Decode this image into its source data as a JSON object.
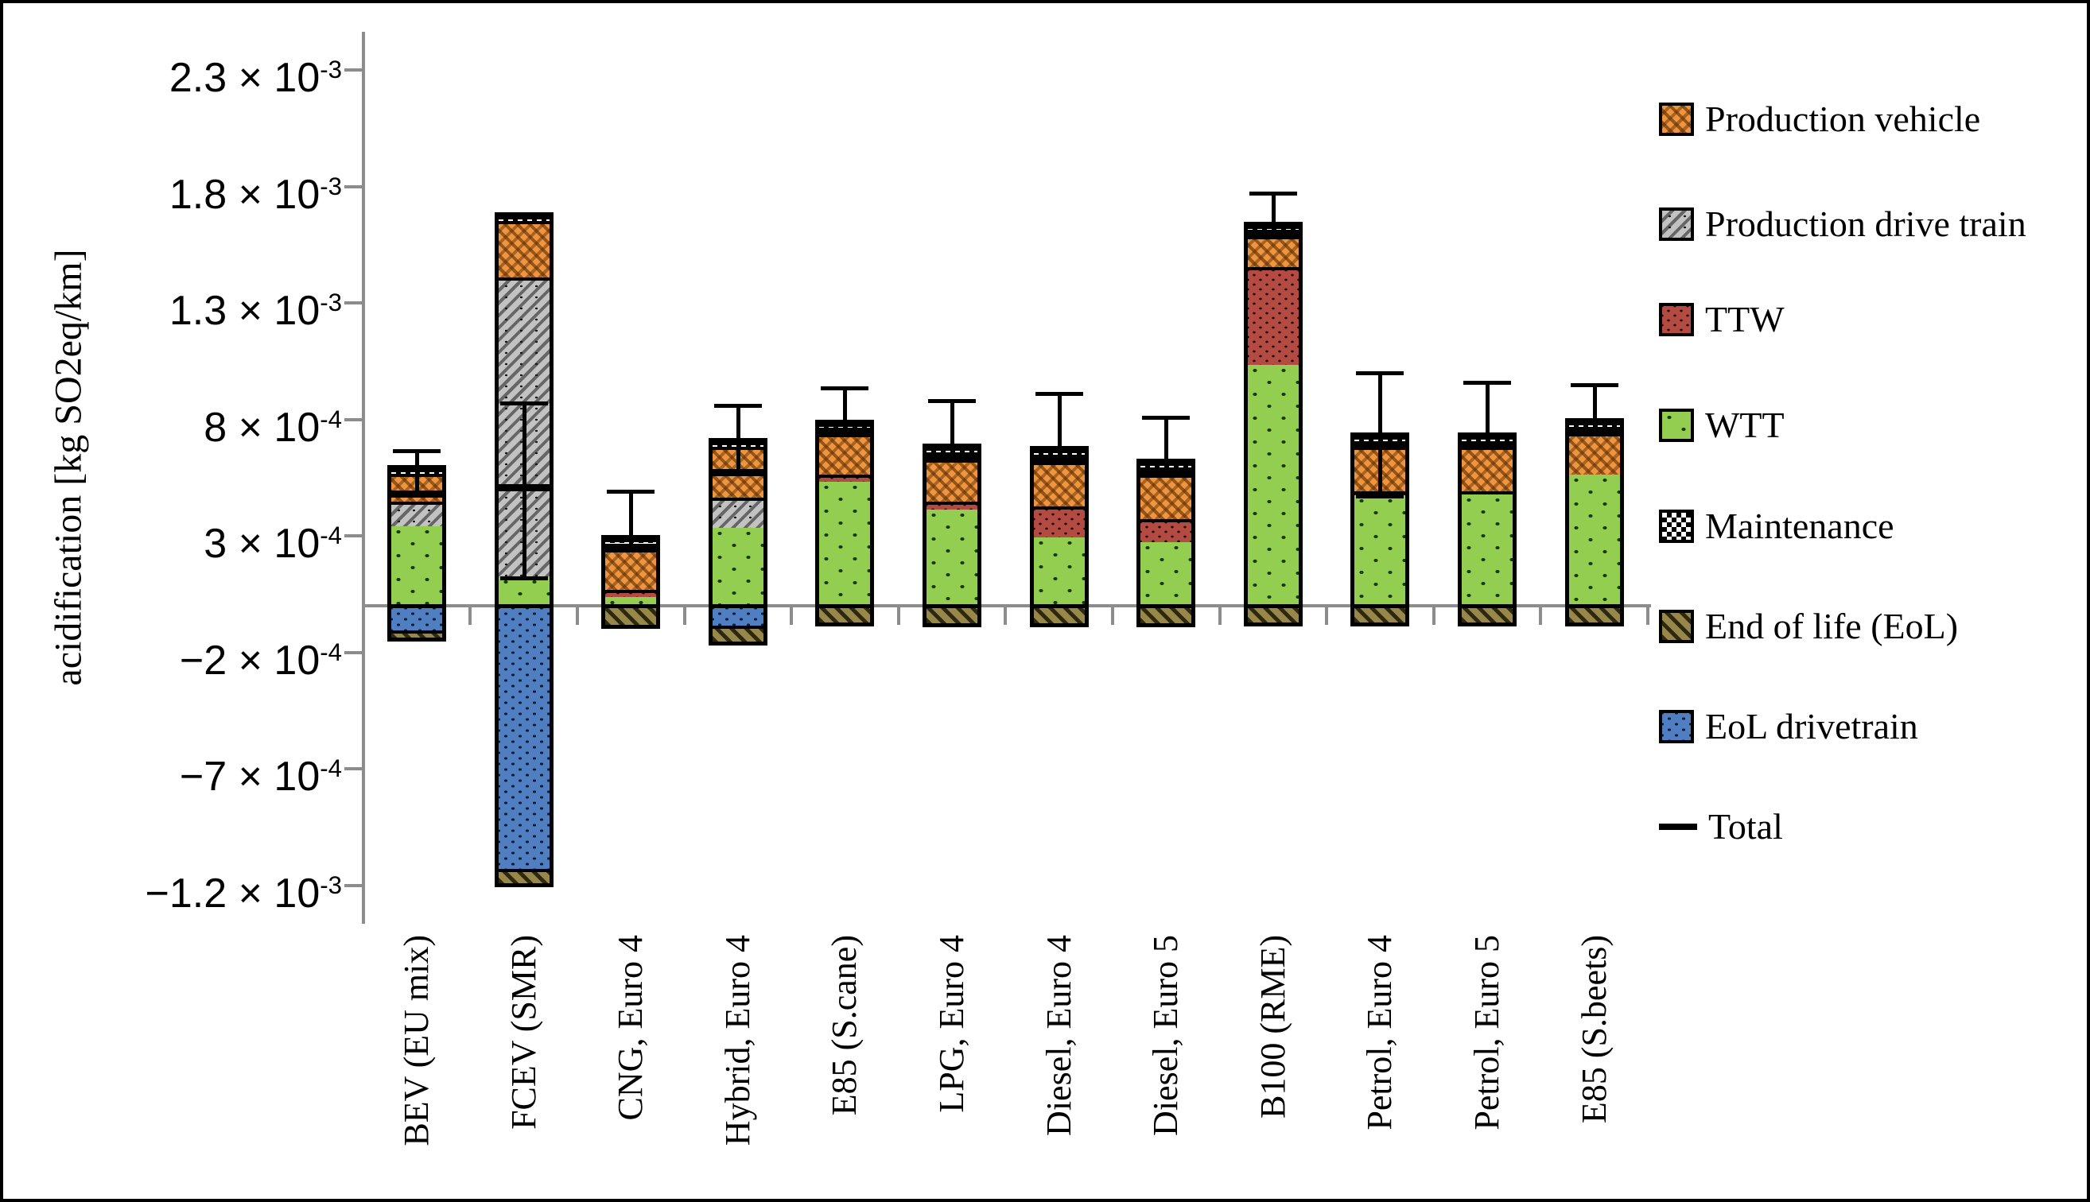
{
  "figure": {
    "y_axis_title": "acidification [kg SO2eq/km]"
  },
  "y_axis": {
    "ticks": [
      {
        "label_base": "2.3 × 10",
        "exp": "-3",
        "value": 0.0023
      },
      {
        "label_base": "1.8 × 10",
        "exp": "-3",
        "value": 0.0018
      },
      {
        "label_base": "1.3 × 10",
        "exp": "-3",
        "value": 0.0013
      },
      {
        "label_base": "8 × 10",
        "exp": "-4",
        "value": 0.0008
      },
      {
        "label_base": "3 × 10",
        "exp": "-4",
        "value": 0.0003
      },
      {
        "label_base": "−2 × 10",
        "exp": "-4",
        "value": -0.0002
      },
      {
        "label_base": "−7 × 10",
        "exp": "-4",
        "value": -0.0007
      },
      {
        "label_base": "−1.2 × 10",
        "exp": "-3",
        "value": -0.0012
      }
    ]
  },
  "legend": {
    "items": [
      {
        "label": "Production vehicle",
        "series": "production_vehicle"
      },
      {
        "label": "Production drive train",
        "series": "production_drive_train"
      },
      {
        "label": "TTW",
        "series": "ttw"
      },
      {
        "label": "WTT",
        "series": "wtt"
      },
      {
        "label": "Maintenance",
        "series": "maintenance"
      },
      {
        "label": "End of life (EoL)",
        "series": "end_of_life"
      },
      {
        "label": "EoL drivetrain",
        "series": "eol_drivetrain"
      },
      {
        "label": "Total",
        "series": "total"
      }
    ]
  },
  "chart_data": {
    "type": "bar",
    "subtype": "stacked-with-negatives",
    "title": "",
    "xlabel": "",
    "ylabel": "acidification [kg SO2eq/km]",
    "unit": "kg SO2eq/km",
    "ylim": [
      -0.00136,
      0.00246
    ],
    "grid": false,
    "legend_position": "right",
    "categories": [
      "BEV (EU mix)",
      "FCEV (SMR)",
      "CNG, Euro 4",
      "Hybrid, Euro 4",
      "E85 (S.cane)",
      "LPG, Euro 4",
      "Diesel, Euro 4",
      "Diesel, Euro 5",
      "B100 (RME)",
      "Petrol, Euro 4",
      "Petrol, Euro 5",
      "E85 (S.beets)"
    ],
    "stack_order_bottom_to_top": [
      "wtt",
      "ttw",
      "production_drive_train",
      "production_vehicle",
      "maintenance"
    ],
    "negative_stack_order_top_to_bottom": [
      "eol_drivetrain",
      "end_of_life"
    ],
    "series": [
      {
        "name": "Production vehicle",
        "key": "production_vehicle",
        "values": [
          0.00012,
          0.000245,
          0.0002,
          0.00022,
          0.0002,
          0.00021,
          0.00022,
          0.00022,
          0.00016,
          0.000215,
          0.000215,
          0.000205
        ]
      },
      {
        "name": "Production drive train",
        "key": "production_drive_train",
        "values": [
          0.000105,
          0.00128,
          0,
          0.00013,
          0,
          0,
          0,
          0,
          0,
          0,
          0,
          0
        ]
      },
      {
        "name": "TTW",
        "key": "ttw",
        "values": [
          0,
          0,
          3e-05,
          0,
          3e-05,
          3.5e-05,
          0.000135,
          0.0001,
          0.00042,
          2e-05,
          1.5e-05,
          0
        ]
      },
      {
        "name": "WTT",
        "key": "wtt",
        "values": [
          0.00036,
          0.000145,
          5.5e-05,
          0.00035,
          0.00055,
          0.00043,
          0.00031,
          0.00029,
          0.00105,
          0.00049,
          0.000495,
          0.00058
        ]
      },
      {
        "name": "Maintenance",
        "key": "maintenance",
        "values": [
          2e-05,
          2e-05,
          2e-05,
          2e-05,
          2e-05,
          2e-05,
          2e-05,
          2e-05,
          2e-05,
          2e-05,
          2e-05,
          2e-05
        ]
      },
      {
        "name": "End of life (EoL)",
        "key": "end_of_life",
        "values": [
          -3e-05,
          -6e-05,
          -7e-05,
          -7e-05,
          -6e-05,
          -6.5e-05,
          -6.5e-05,
          -6.5e-05,
          -6e-05,
          -6e-05,
          -6e-05,
          -6e-05
        ]
      },
      {
        "name": "EoL drivetrain",
        "key": "eol_drivetrain",
        "values": [
          -9.5e-05,
          -0.00112,
          0,
          -7.5e-05,
          0,
          0,
          0,
          0,
          0,
          0,
          0,
          0
        ]
      }
    ],
    "totals": [
      0.00048,
      0.00051,
      0.000245,
      0.000575,
      0.00074,
      0.00063,
      0.00062,
      0.000565,
      0.00159,
      0.000685,
      0.000685,
      0.000745
    ],
    "error_bars": {
      "top": [
        0.000665,
        0.00087,
        0.00049,
        0.00086,
        0.000935,
        0.00088,
        0.00091,
        0.00081,
        0.00177,
        0.001,
        0.00096,
        0.00095
      ],
      "bottom": [
        null,
        0.00012,
        null,
        null,
        null,
        null,
        null,
        null,
        null,
        0.00047,
        null,
        null
      ]
    }
  }
}
